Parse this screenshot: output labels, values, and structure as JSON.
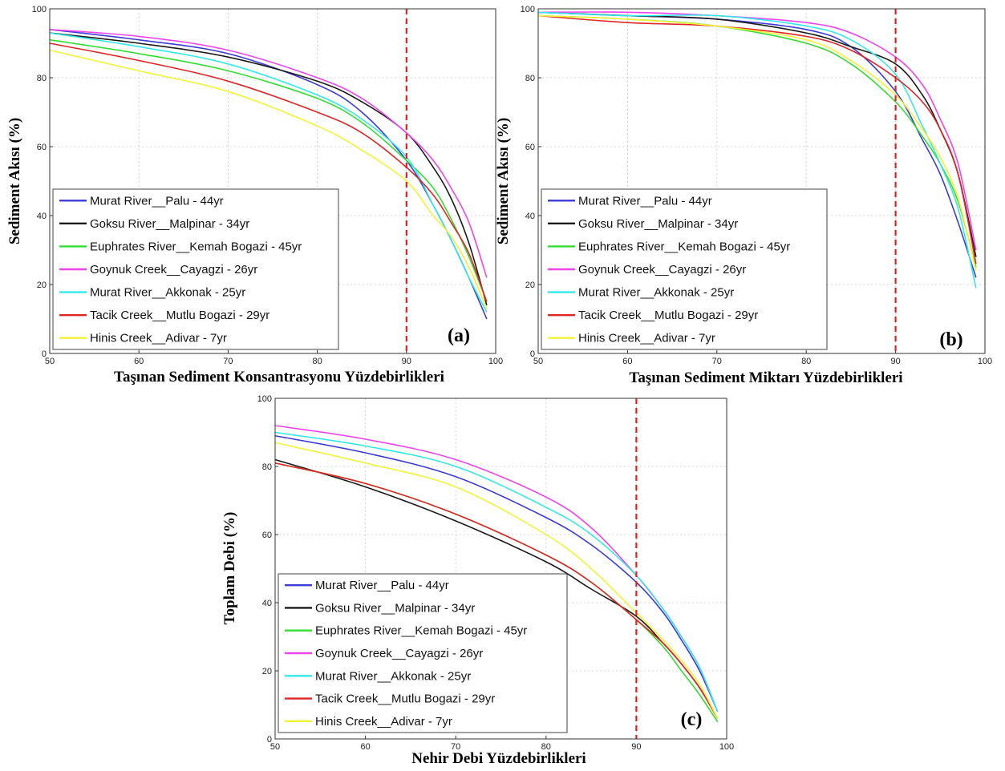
{
  "figure": {
    "series_colors": [
      "#3b3bd9",
      "#1a1a1a",
      "#33dd33",
      "#ee44ee",
      "#33e8e8",
      "#e02525",
      "#f2f233"
    ],
    "marker_color": "#e02020"
  },
  "chart_data": [
    {
      "type": "line",
      "panel_label": "(a)",
      "xlabel": "Taşınan Sediment Konsantrasyonu Yüzdebirlikleri",
      "ylabel": "Sediment Akısı (%)",
      "xlim": [
        50,
        100
      ],
      "ylim": [
        0,
        100
      ],
      "xticks": [
        50,
        60,
        70,
        80,
        90,
        100
      ],
      "yticks": [
        0,
        20,
        40,
        60,
        80,
        100
      ],
      "grid": true,
      "legend_position": "lower-left",
      "vline_x": 90,
      "x": [
        50,
        60,
        70,
        80,
        85,
        90,
        93,
        95,
        97,
        99
      ],
      "series": [
        {
          "name": "Murat River__Palu - 44yr",
          "values": [
            94,
            91,
            87,
            78,
            70,
            56,
            43,
            33,
            22,
            10
          ]
        },
        {
          "name": "Goksu River__Malpinar - 34yr",
          "values": [
            93,
            90,
            86,
            79,
            73,
            64,
            54,
            45,
            32,
            14
          ]
        },
        {
          "name": "Euphrates River__Kemah Bogazi - 45yr",
          "values": [
            91,
            87,
            82,
            74,
            67,
            56,
            48,
            39,
            28,
            15
          ]
        },
        {
          "name": "Goynuk Creek__Cayagzi - 26yr",
          "values": [
            94,
            92,
            88,
            80,
            74,
            64,
            56,
            48,
            38,
            22
          ]
        },
        {
          "name": "Murat River__Akkonak - 25yr",
          "values": [
            93,
            89,
            84,
            75,
            68,
            57,
            43,
            33,
            22,
            12
          ]
        },
        {
          "name": "Tacik Creek__Mutlu Bogazi - 29yr",
          "values": [
            90,
            85,
            79,
            70,
            64,
            54,
            46,
            38,
            29,
            15
          ]
        },
        {
          "name": "Hinis Creek__Adivar - 7yr",
          "values": [
            88,
            82,
            76,
            66,
            59,
            50,
            40,
            34,
            25,
            13
          ]
        }
      ]
    },
    {
      "type": "line",
      "panel_label": "(b)",
      "xlabel": "Taşınan Sediment Miktarı Yüzdebirlikleri",
      "ylabel": "Sediment Akısı (%)",
      "xlim": [
        50,
        100
      ],
      "ylim": [
        0,
        100
      ],
      "xticks": [
        50,
        60,
        70,
        80,
        90,
        100
      ],
      "yticks": [
        0,
        20,
        40,
        60,
        80,
        100
      ],
      "grid": true,
      "legend_position": "lower-left",
      "vline_x": 90,
      "x": [
        50,
        60,
        70,
        80,
        85,
        90,
        93,
        95,
        97,
        99
      ],
      "series": [
        {
          "name": "Murat River__Palu - 44yr",
          "values": [
            99,
            98,
            97,
            94,
            89,
            76,
            62,
            52,
            38,
            22
          ]
        },
        {
          "name": "Goksu River__Malpinar - 34yr",
          "values": [
            99,
            98,
            97,
            93,
            89,
            84,
            75,
            65,
            52,
            28
          ]
        },
        {
          "name": "Euphrates River__Kemah Bogazi - 45yr",
          "values": [
            98,
            97,
            95,
            90,
            84,
            73,
            63,
            55,
            44,
            25
          ]
        },
        {
          "name": "Goynuk Creek__Cayagzi - 26yr",
          "values": [
            99,
            99,
            98,
            96,
            93,
            86,
            78,
            68,
            55,
            30
          ]
        },
        {
          "name": "Murat River__Akkonak - 25yr",
          "values": [
            99,
            98,
            98,
            95,
            91,
            81,
            66,
            55,
            42,
            19
          ]
        },
        {
          "name": "Tacik Creek__Mutlu Bogazi - 29yr",
          "values": [
            98,
            96,
            95,
            92,
            88,
            80,
            73,
            65,
            52,
            26
          ]
        },
        {
          "name": "Hinis Creek__Adivar - 7yr",
          "values": [
            98,
            97,
            95,
            91,
            85,
            75,
            65,
            57,
            45,
            24
          ]
        }
      ]
    },
    {
      "type": "line",
      "panel_label": "(c)",
      "xlabel": "Nehir Debi Yüzdebirlikleri",
      "ylabel": "Toplam Debi (%)",
      "xlim": [
        50,
        100
      ],
      "ylim": [
        0,
        100
      ],
      "xticks": [
        50,
        60,
        70,
        80,
        90,
        100
      ],
      "yticks": [
        0,
        20,
        40,
        60,
        80,
        100
      ],
      "grid": true,
      "legend_position": "lower-left",
      "vline_x": 90,
      "x": [
        50,
        60,
        70,
        80,
        85,
        90,
        93,
        95,
        97,
        99
      ],
      "series": [
        {
          "name": "Murat River__Palu - 44yr",
          "values": [
            89,
            84,
            77,
            65,
            57,
            46,
            37,
            29,
            20,
            8
          ]
        },
        {
          "name": "Goksu River__Malpinar - 34yr",
          "values": [
            82,
            74,
            64,
            52,
            44,
            36,
            28,
            22,
            15,
            6
          ]
        },
        {
          "name": "Euphrates River__Kemah Bogazi - 45yr",
          "values": [
            81,
            75,
            66,
            54,
            46,
            35,
            27,
            20,
            13,
            5
          ]
        },
        {
          "name": "Goynuk Creek__Cayagzi - 26yr",
          "values": [
            92,
            88,
            82,
            71,
            62,
            48,
            38,
            30,
            21,
            8
          ]
        },
        {
          "name": "Murat River__Akkonak - 25yr",
          "values": [
            90,
            86,
            80,
            68,
            60,
            48,
            38,
            30,
            21,
            8
          ]
        },
        {
          "name": "Tacik Creek__Mutlu Bogazi - 29yr",
          "values": [
            81,
            75,
            66,
            54,
            46,
            35,
            28,
            22,
            15,
            6
          ]
        },
        {
          "name": "Hinis Creek__Adivar - 7yr",
          "values": [
            87,
            81,
            74,
            60,
            50,
            37,
            29,
            23,
            16,
            6
          ]
        }
      ]
    }
  ]
}
